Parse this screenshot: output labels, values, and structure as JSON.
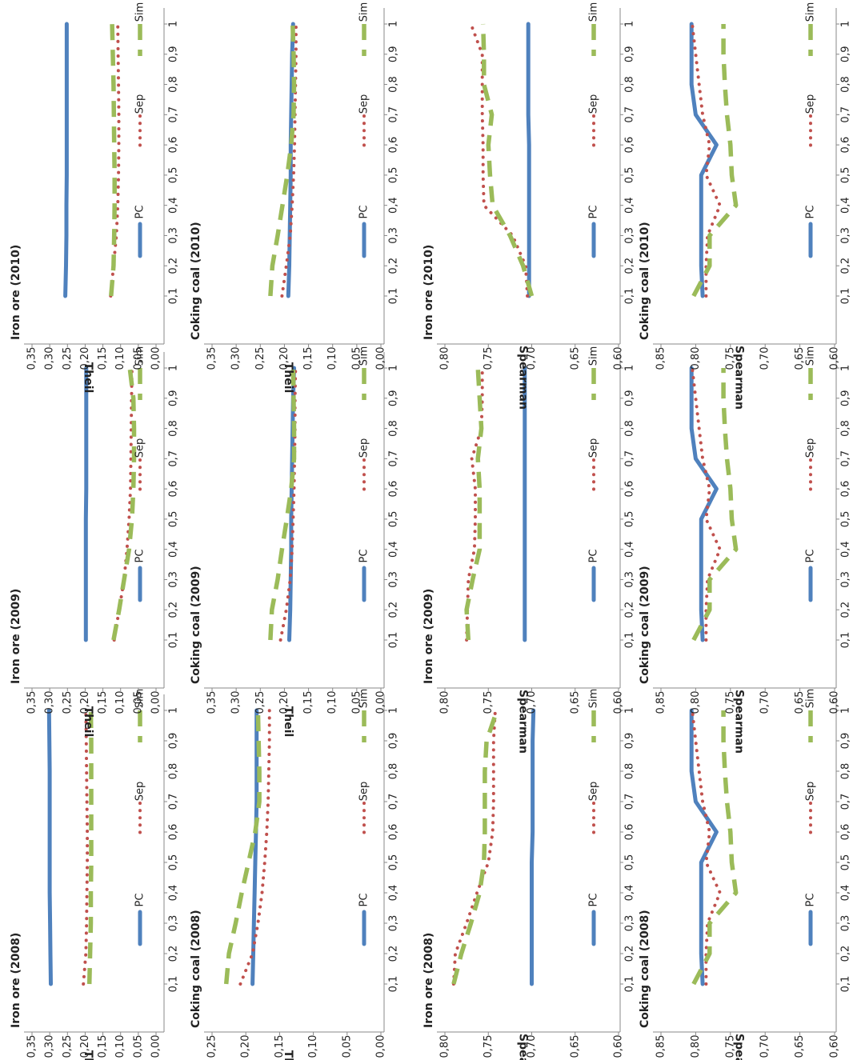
{
  "colors": {
    "PC": "#4f81bd",
    "Sep": "#c0504d",
    "Sim": "#9bbb59",
    "axis": "#888888",
    "text": "#222222"
  },
  "chart_data": [
    {
      "type": "line",
      "title": "Iron ore (2008)",
      "ylabel": "Theil",
      "ylim": [
        0,
        0.35
      ],
      "yticks": [
        "0,00",
        "0,05",
        "0,10",
        "0,15",
        "0,20",
        "0,25",
        "0,30",
        "0,35"
      ],
      "x": [
        "0,1",
        "0,2",
        "0,3",
        "0,4",
        "0,5",
        "0,6",
        "0,7",
        "0,8",
        "0,9",
        "1"
      ],
      "series": [
        {
          "name": "PC",
          "values": [
            0.297,
            0.298,
            0.299,
            0.3,
            0.3,
            0.3,
            0.3,
            0.3,
            0.301,
            0.302
          ]
        },
        {
          "name": "Sep",
          "values": [
            0.205,
            0.198,
            0.196,
            0.195,
            0.194,
            0.194,
            0.195,
            0.196,
            0.197,
            0.198
          ]
        },
        {
          "name": "Sim",
          "values": [
            0.188,
            0.186,
            0.184,
            0.184,
            0.183,
            0.183,
            0.183,
            0.183,
            0.183,
            0.184
          ]
        }
      ]
    },
    {
      "type": "line",
      "title": "Iron ore (2009)",
      "ylabel": "Theil",
      "ylim": [
        0,
        0.35
      ],
      "yticks": [
        "0,00",
        "0,05",
        "0,10",
        "0,15",
        "0,20",
        "0,25",
        "0,30",
        "0,35"
      ],
      "x": [
        "0,1",
        "0,2",
        "0,3",
        "0,4",
        "0,5",
        "0,6",
        "0,7",
        "0,8",
        "0,9",
        "1"
      ],
      "series": [
        {
          "name": "PC",
          "values": [
            0.198,
            0.198,
            0.198,
            0.198,
            0.198,
            0.197,
            0.197,
            0.197,
            0.197,
            0.197
          ]
        },
        {
          "name": "Sep",
          "values": [
            0.118,
            0.104,
            0.09,
            0.082,
            0.076,
            0.072,
            0.071,
            0.07,
            0.069,
            0.068
          ]
        },
        {
          "name": "Sim",
          "values": [
            0.12,
            0.104,
            0.09,
            0.076,
            0.068,
            0.064,
            0.062,
            0.062,
            0.064,
            0.074
          ]
        }
      ]
    },
    {
      "type": "line",
      "title": "Iron ore (2010)",
      "ylabel": "Theil",
      "ylim": [
        0,
        0.35
      ],
      "yticks": [
        "0,00",
        "0,05",
        "0,10",
        "0,15",
        "0,20",
        "0,25",
        "0,30",
        "0,35"
      ],
      "x": [
        "0,1",
        "0,2",
        "0,3",
        "0,4",
        "0,5",
        "0,6",
        "0,7",
        "0,8",
        "0,9",
        "1"
      ],
      "series": [
        {
          "name": "PC",
          "values": [
            0.256,
            0.254,
            0.253,
            0.253,
            0.252,
            0.252,
            0.252,
            0.252,
            0.252,
            0.252
          ]
        },
        {
          "name": "Sep",
          "values": [
            0.128,
            0.12,
            0.112,
            0.108,
            0.106,
            0.105,
            0.105,
            0.106,
            0.107,
            0.108
          ]
        },
        {
          "name": "Sim",
          "values": [
            0.127,
            0.12,
            0.118,
            0.117,
            0.117,
            0.118,
            0.119,
            0.12,
            0.122,
            0.124
          ]
        }
      ]
    },
    {
      "type": "line",
      "title": "Coking coal (2008)",
      "ylabel": "Theil",
      "ylim": [
        0,
        0.25
      ],
      "yticks": [
        "0,00",
        "0,05",
        "0,10",
        "0,15",
        "0,20",
        "0,25"
      ],
      "x": [
        "0,1",
        "0,2",
        "0,3",
        "0,4",
        "0,5",
        "0,6",
        "0,7",
        "0,8",
        "0,9",
        "1"
      ],
      "series": [
        {
          "name": "PC",
          "values": [
            0.19,
            0.189,
            0.188,
            0.187,
            0.186,
            0.185,
            0.184,
            0.184,
            0.184,
            0.184
          ]
        },
        {
          "name": "Sep",
          "values": [
            0.208,
            0.19,
            0.182,
            0.176,
            0.172,
            0.169,
            0.167,
            0.166,
            0.165,
            0.165
          ]
        },
        {
          "name": "Sim",
          "values": [
            0.229,
            0.225,
            0.215,
            0.206,
            0.196,
            0.186,
            0.18,
            0.18,
            0.181,
            0.182
          ]
        }
      ]
    },
    {
      "type": "line",
      "title": "Coking coal (2009)",
      "ylabel": "Theil",
      "ylim": [
        0,
        0.35
      ],
      "yticks": [
        "0,00",
        "0,05",
        "0,10",
        "0,15",
        "0,20",
        "0,25",
        "0,30",
        "0,35"
      ],
      "x": [
        "0,1",
        "0,2",
        "0,3",
        "0,4",
        "0,5",
        "0,6",
        "0,7",
        "0,8",
        "0,9",
        "1"
      ],
      "series": [
        {
          "name": "PC",
          "values": [
            0.19,
            0.188,
            0.187,
            0.186,
            0.186,
            0.185,
            0.184,
            0.183,
            0.182,
            0.18
          ]
        },
        {
          "name": "Sep",
          "values": [
            0.208,
            0.196,
            0.188,
            0.184,
            0.182,
            0.18,
            0.179,
            0.178,
            0.178,
            0.177
          ]
        },
        {
          "name": "Sim",
          "values": [
            0.229,
            0.226,
            0.214,
            0.205,
            0.195,
            0.186,
            0.18,
            0.18,
            0.181,
            0.182
          ]
        }
      ]
    },
    {
      "type": "line",
      "title": "Coking coal (2010)",
      "ylabel": "Theil",
      "ylim": [
        0,
        0.35
      ],
      "yticks": [
        "0,00",
        "0,05",
        "0,10",
        "0,15",
        "0,20",
        "0,25",
        "0,30",
        "0,35"
      ],
      "x": [
        "0,1",
        "0,2",
        "0,3",
        "0,4",
        "0,5",
        "0,6",
        "0,7",
        "0,8",
        "0,9",
        "1"
      ],
      "series": [
        {
          "name": "PC",
          "values": [
            0.192,
            0.19,
            0.189,
            0.188,
            0.187,
            0.187,
            0.186,
            0.185,
            0.184,
            0.182
          ]
        },
        {
          "name": "Sep",
          "values": [
            0.205,
            0.196,
            0.188,
            0.184,
            0.181,
            0.179,
            0.178,
            0.177,
            0.176,
            0.176
          ]
        },
        {
          "name": "Sim",
          "values": [
            0.229,
            0.225,
            0.214,
            0.204,
            0.194,
            0.186,
            0.181,
            0.18,
            0.181,
            0.183
          ]
        }
      ]
    },
    {
      "type": "line",
      "title": "Iron ore (2008)",
      "ylabel": "Spearman",
      "ylim": [
        0.6,
        0.8
      ],
      "yticks": [
        "0,60",
        "0,65",
        "0,70",
        "0,75",
        "0,80"
      ],
      "x": [
        "0,1",
        "0,2",
        "0,3",
        "0,4",
        "0,5",
        "0,6",
        "0,7",
        "0,8",
        "0,9",
        "1"
      ],
      "series": [
        {
          "name": "PC",
          "values": [
            0.7,
            0.7,
            0.7,
            0.7,
            0.7,
            0.699,
            0.699,
            0.699,
            0.699,
            0.698
          ]
        },
        {
          "name": "Sep",
          "values": [
            0.79,
            0.788,
            0.775,
            0.763,
            0.75,
            0.745,
            0.744,
            0.744,
            0.744,
            0.742
          ]
        },
        {
          "name": "Sim",
          "values": [
            0.79,
            0.781,
            0.77,
            0.76,
            0.755,
            0.754,
            0.754,
            0.754,
            0.752,
            0.74
          ]
        }
      ]
    },
    {
      "type": "line",
      "title": "Iron ore (2009)",
      "ylabel": "Spearman",
      "ylim": [
        0.6,
        0.8
      ],
      "yticks": [
        "0,60",
        "0,65",
        "0,70",
        "0,75",
        "0,80"
      ],
      "x": [
        "0,1",
        "0,2",
        "0,3",
        "0,4",
        "0,5",
        "0,6",
        "0,7",
        "0,8",
        "0,9",
        "1"
      ],
      "series": [
        {
          "name": "PC",
          "values": [
            0.708,
            0.708,
            0.708,
            0.708,
            0.708,
            0.708,
            0.708,
            0.708,
            0.708,
            0.708
          ]
        },
        {
          "name": "Sep",
          "values": [
            0.775,
            0.774,
            0.773,
            0.766,
            0.765,
            0.765,
            0.769,
            0.758,
            0.757,
            0.757
          ]
        },
        {
          "name": "Sim",
          "values": [
            0.773,
            0.775,
            0.768,
            0.76,
            0.76,
            0.76,
            0.762,
            0.758,
            0.76,
            0.762
          ]
        }
      ]
    },
    {
      "type": "line",
      "title": "Iron ore (2010)",
      "ylabel": "Spearman",
      "ylim": [
        0.6,
        0.8
      ],
      "yticks": [
        "0,60",
        "0,65",
        "0,70",
        "0,75",
        "0,80"
      ],
      "x": [
        "0,1",
        "0,2",
        "0,3",
        "0,4",
        "0,5",
        "0,6",
        "0,7",
        "0,8",
        "0,9",
        "1"
      ],
      "series": [
        {
          "name": "PC",
          "values": [
            0.703,
            0.703,
            0.703,
            0.703,
            0.703,
            0.703,
            0.704,
            0.704,
            0.704,
            0.704
          ]
        },
        {
          "name": "Sep",
          "values": [
            0.705,
            0.707,
            0.722,
            0.755,
            0.756,
            0.756,
            0.757,
            0.757,
            0.757,
            0.77
          ]
        },
        {
          "name": "Sim",
          "values": [
            0.7,
            0.71,
            0.725,
            0.745,
            0.748,
            0.75,
            0.746,
            0.755,
            0.755,
            0.756
          ]
        }
      ]
    },
    {
      "type": "line",
      "title": "Coking coal (2008)",
      "ylabel": "Spearman",
      "ylim": [
        0.6,
        0.85
      ],
      "yticks": [
        "0,60",
        "0,65",
        "0,70",
        "0,75",
        "0,80",
        "0,85"
      ],
      "x": [
        "0,1",
        "0,2",
        "0,3",
        "0,4",
        "0,5",
        "0,6",
        "0,7",
        "0,8",
        "0,9",
        "1"
      ],
      "series": [
        {
          "name": "PC",
          "values": [
            0.79,
            0.792,
            0.792,
            0.792,
            0.792,
            0.77,
            0.8,
            0.806,
            0.806,
            0.806
          ]
        },
        {
          "name": "Sep",
          "values": [
            0.785,
            0.785,
            0.783,
            0.765,
            0.785,
            0.78,
            0.79,
            0.795,
            0.8,
            0.805
          ]
        },
        {
          "name": "Sim",
          "values": [
            0.803,
            0.78,
            0.78,
            0.742,
            0.748,
            0.75,
            0.755,
            0.758,
            0.76,
            0.76
          ]
        }
      ]
    },
    {
      "type": "line",
      "title": "Coking coal (2009)",
      "ylabel": "Spearman",
      "ylim": [
        0.6,
        0.85
      ],
      "yticks": [
        "0,60",
        "0,65",
        "0,70",
        "0,75",
        "0,80",
        "0,85"
      ],
      "x": [
        "0,1",
        "0,2",
        "0,3",
        "0,4",
        "0,5",
        "0,6",
        "0,7",
        "0,8",
        "0,9",
        "1"
      ],
      "series": [
        {
          "name": "PC",
          "values": [
            0.79,
            0.792,
            0.792,
            0.792,
            0.792,
            0.77,
            0.8,
            0.806,
            0.806,
            0.806
          ]
        },
        {
          "name": "Sep",
          "values": [
            0.785,
            0.785,
            0.783,
            0.765,
            0.785,
            0.78,
            0.79,
            0.795,
            0.8,
            0.805
          ]
        },
        {
          "name": "Sim",
          "values": [
            0.803,
            0.78,
            0.78,
            0.742,
            0.748,
            0.75,
            0.755,
            0.758,
            0.76,
            0.76
          ]
        }
      ]
    },
    {
      "type": "line",
      "title": "Coking coal (2010)",
      "ylabel": "Spearman",
      "ylim": [
        0.6,
        0.85
      ],
      "yticks": [
        "0,60",
        "0,65",
        "0,70",
        "0,75",
        "0,80",
        "0,85"
      ],
      "x": [
        "0,1",
        "0,2",
        "0,3",
        "0,4",
        "0,5",
        "0,6",
        "0,7",
        "0,8",
        "0,9",
        "1"
      ],
      "series": [
        {
          "name": "PC",
          "values": [
            0.79,
            0.792,
            0.792,
            0.792,
            0.792,
            0.77,
            0.8,
            0.806,
            0.806,
            0.806
          ]
        },
        {
          "name": "Sep",
          "values": [
            0.785,
            0.785,
            0.783,
            0.765,
            0.785,
            0.78,
            0.79,
            0.795,
            0.8,
            0.805
          ]
        },
        {
          "name": "Sim",
          "values": [
            0.803,
            0.78,
            0.78,
            0.742,
            0.748,
            0.75,
            0.755,
            0.758,
            0.76,
            0.76
          ]
        }
      ]
    }
  ]
}
